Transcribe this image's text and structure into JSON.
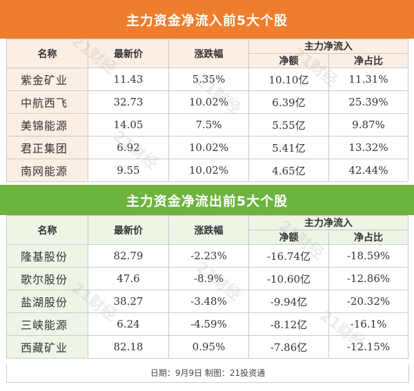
{
  "inflow": {
    "title": "主力资金净流入前5大个股",
    "headers": {
      "name": "名称",
      "price": "最新价",
      "change": "涨跌幅",
      "group": "主力净流入",
      "net": "净额",
      "ratio": "净占比"
    },
    "rows": [
      {
        "name": "紫金矿业",
        "price": "11.43",
        "change": "5.35%",
        "net": "10.10亿",
        "ratio": "11.31%"
      },
      {
        "name": "中航西飞",
        "price": "32.73",
        "change": "10.02%",
        "net": "6.39亿",
        "ratio": "25.39%"
      },
      {
        "name": "美锦能源",
        "price": "14.05",
        "change": "7.5%",
        "net": "5.55亿",
        "ratio": "9.87%"
      },
      {
        "name": "君正集团",
        "price": "6.92",
        "change": "10.02%",
        "net": "5.41亿",
        "ratio": "13.32%"
      },
      {
        "name": "南网能源",
        "price": "9.55",
        "change": "10.02%",
        "net": "4.65亿",
        "ratio": "42.44%"
      }
    ]
  },
  "outflow": {
    "title": "主力资金净流出前5大个股",
    "headers": {
      "name": "名称",
      "price": "最新价",
      "change": "涨跌幅",
      "group": "主力净流入",
      "net": "净额",
      "ratio": "净占比"
    },
    "rows": [
      {
        "name": "隆基股份",
        "price": "82.79",
        "change": "-2.23%",
        "net": "-16.74亿",
        "ratio": "-18.59%"
      },
      {
        "name": "歌尔股份",
        "price": "47.6",
        "change": "-8.9%",
        "net": "-10.60亿",
        "ratio": "-12.86%"
      },
      {
        "name": "盐湖股份",
        "price": "38.27",
        "change": "-3.48%",
        "net": "-9.94亿",
        "ratio": "-20.32%"
      },
      {
        "name": "三峡能源",
        "price": "6.24",
        "change": "-4.59%",
        "net": "-8.12亿",
        "ratio": "-16.1%"
      },
      {
        "name": "西藏矿业",
        "price": "82.18",
        "change": "0.95%",
        "net": "-7.86亿",
        "ratio": "-12.15%"
      }
    ]
  },
  "footer": "日期：9月9日  制图：21投资通",
  "watermark": "21财经",
  "colors": {
    "inflow_banner": "#ee7d2d",
    "outflow_banner": "#6db33f"
  }
}
